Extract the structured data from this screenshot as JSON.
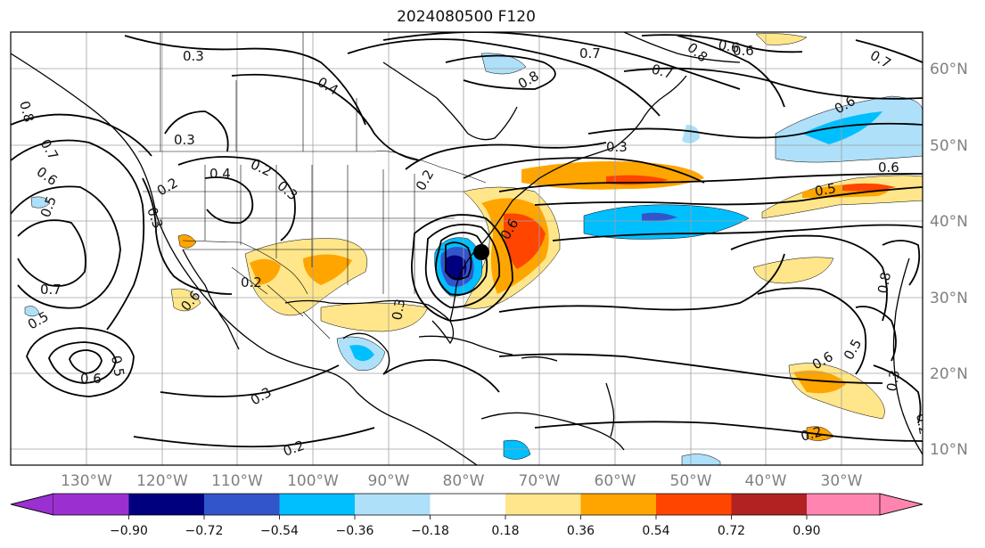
{
  "title": "2024080500 F120",
  "longitude_labels": [
    "130°W",
    "120°W",
    "110°W",
    "100°W",
    "90°W",
    "80°W",
    "70°W",
    "60°W",
    "50°W",
    "40°W",
    "30°W"
  ],
  "latitude_labels": [
    "60°N",
    "50°N",
    "40°N",
    "30°N",
    "20°N",
    "10°N"
  ],
  "colorbar": {
    "tick_labels": [
      "−0.90",
      "−0.72",
      "−0.54",
      "−0.36",
      "−0.18",
      "0.18",
      "0.36",
      "0.54",
      "0.72",
      "0.90"
    ],
    "colors": [
      "#9b30d0",
      "#00007f",
      "#3355cc",
      "#00bfff",
      "#aee0fa",
      "#ffffff",
      "#ffe68a",
      "#ffa500",
      "#ff4500",
      "#b22222",
      "#ff85b0"
    ],
    "extend": "both"
  },
  "contour_labels": [
    "0.3",
    "0.2",
    "0.3",
    "0.4",
    "0.2",
    "0.3",
    "0.2",
    "0.3",
    "0.5",
    "0.6",
    "0.7",
    "0.8",
    "0.7",
    "0.6",
    "0.5",
    "0.7",
    "0.5",
    "0.6",
    "0.8",
    "0.7",
    "0.8",
    "0.6",
    "0.6",
    "0.7",
    "0.6",
    "0.5",
    "0.6",
    "0.8",
    "0.5",
    "0.6",
    "0.3",
    "0.2",
    "0.3",
    "0.2",
    "0.4",
    "0.3",
    "0.2",
    "0.3",
    "0.2",
    "0.6"
  ],
  "colors": {
    "land_line": "#000000",
    "grid": "#a0a0a0",
    "contour": "#000000"
  }
}
